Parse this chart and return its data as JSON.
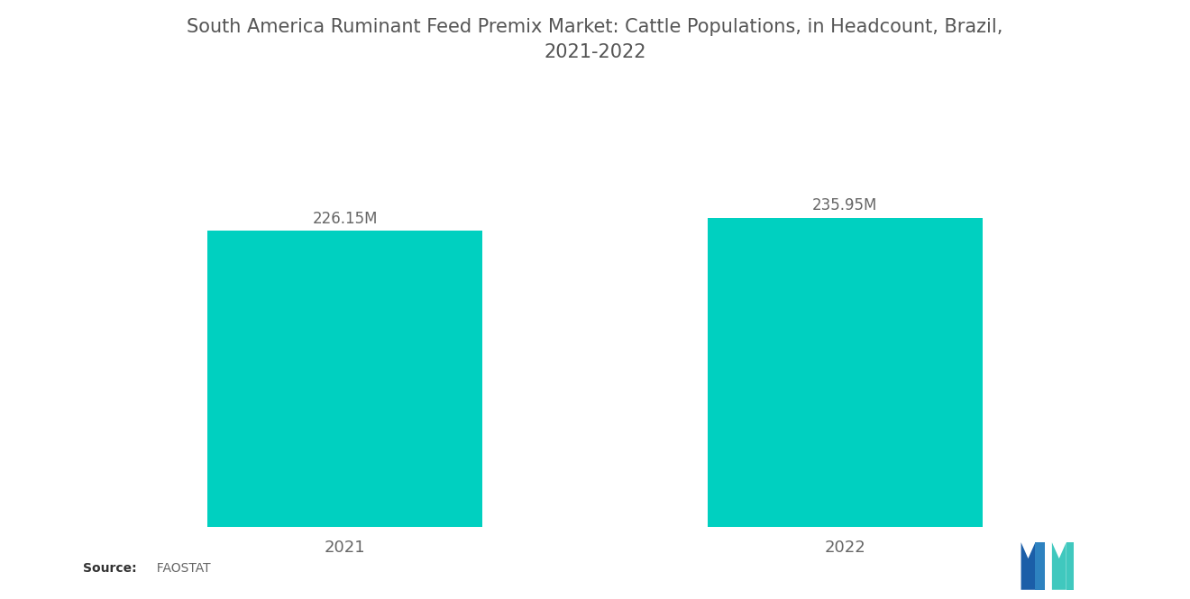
{
  "title_line1": "South America Ruminant Feed Premix Market: Cattle Populations, in Headcount, Brazil,",
  "title_line2": "2021-2022",
  "categories": [
    "2021",
    "2022"
  ],
  "values": [
    226.15,
    235.95
  ],
  "labels": [
    "226.15M",
    "235.95M"
  ],
  "bar_color": "#00D0C0",
  "background_color": "#ffffff",
  "title_fontsize": 15,
  "label_fontsize": 12,
  "tick_fontsize": 13,
  "source_bold": "Source:",
  "source_normal": "  FAOSTAT",
  "ylim": [
    0,
    265
  ],
  "bar_width": 0.55,
  "xlim": [
    -0.5,
    1.5
  ],
  "logo_blue_dark": "#1B5EA8",
  "logo_blue_mid": "#2E82C0",
  "logo_teal": "#40C8BE"
}
